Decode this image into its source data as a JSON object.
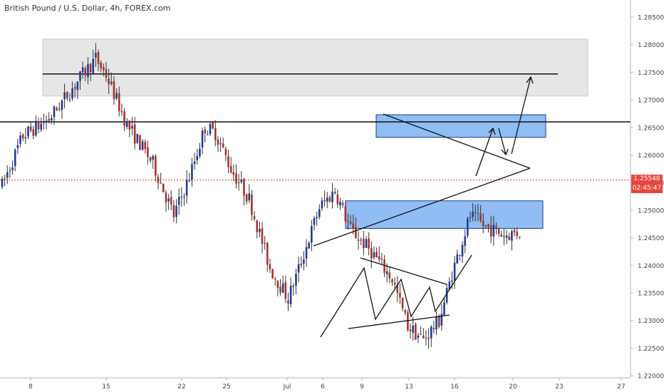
{
  "header": {
    "title": "British Pound / U.S. Dollar, 4h, FOREX.com"
  },
  "colors": {
    "up": "#1f3c9a",
    "down": "#a8322a",
    "wick": "#333333",
    "resistance_zone": "#e6e6e6",
    "supply_demand_zone": "#90bdf3",
    "zone_border": "#1e3d8c",
    "current_price_line": "#d14a3f",
    "badge": "#e8463c",
    "axis_text": "#444444",
    "axis_line": "#b2b5be"
  },
  "current_price": {
    "value": 1.25548,
    "label": "1.25548",
    "countdown": "02:45:47"
  },
  "chart_data": {
    "type": "candlestick",
    "title": "British Pound / U.S. Dollar, 4h, FOREX.com",
    "ylim": [
      1.22,
      1.288
    ],
    "y_ticks": [
      "1.28500",
      "1.28000",
      "1.27500",
      "1.27000",
      "1.26500",
      "1.26000",
      "1.25500",
      "1.25000",
      "1.24500",
      "1.24000",
      "1.23500",
      "1.23000",
      "1.22500",
      "1.22000"
    ],
    "x_ticks": [
      "8",
      "15",
      "22",
      "25",
      "Jul",
      "6",
      "9",
      "13",
      "16",
      "20",
      "23",
      "27"
    ],
    "bar_count": 200,
    "price_path": [
      [
        0,
        1.2545
      ],
      [
        8,
        1.2635
      ],
      [
        18,
        1.2665
      ],
      [
        30,
        1.274
      ],
      [
        36,
        1.2775
      ],
      [
        40,
        1.2745
      ],
      [
        48,
        1.2655
      ],
      [
        58,
        1.2585
      ],
      [
        66,
        1.249
      ],
      [
        72,
        1.256
      ],
      [
        78,
        1.265
      ],
      [
        82,
        1.264
      ],
      [
        88,
        1.2575
      ],
      [
        95,
        1.252
      ],
      [
        103,
        1.2395
      ],
      [
        110,
        1.234
      ],
      [
        116,
        1.242
      ],
      [
        122,
        1.2505
      ],
      [
        128,
        1.2535
      ],
      [
        134,
        1.2465
      ],
      [
        142,
        1.2425
      ],
      [
        150,
        1.2375
      ],
      [
        156,
        1.229
      ],
      [
        162,
        1.2265
      ],
      [
        168,
        1.23
      ],
      [
        174,
        1.24
      ],
      [
        180,
        1.249
      ],
      [
        186,
        1.247
      ],
      [
        193,
        1.2455
      ],
      [
        199,
        1.246
      ]
    ],
    "series_segments": "generated",
    "horizontal_lines": [
      {
        "price": 1.266,
        "span": "full"
      },
      {
        "price": 1.2747,
        "span": "partial"
      }
    ],
    "zones": [
      {
        "name": "upper resistance zone",
        "top": 1.281,
        "bottom": 1.2707
      },
      {
        "name": "supply zone",
        "top": 1.2673,
        "bottom": 1.2632
      },
      {
        "name": "demand zone",
        "top": 1.2517,
        "bottom": 1.2467
      }
    ]
  }
}
